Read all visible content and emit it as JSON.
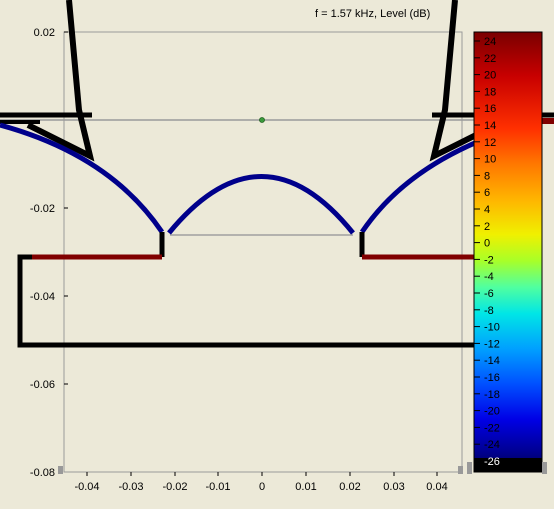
{
  "title": "f = 1.57 kHz, Level  (dB)",
  "axes": {
    "x_ticks": [
      "-0.04",
      "-0.03",
      "-0.02",
      "-0.01",
      "0",
      "0.01",
      "0.02",
      "0.03",
      "0.04"
    ],
    "y_ticks": [
      "0.02",
      "-0.02",
      "-0.04",
      "-0.06",
      "-0.08"
    ],
    "xlim": [
      -0.045,
      0.045
    ],
    "ylim": [
      -0.08,
      0.02
    ]
  },
  "colorbar": {
    "labels": [
      "24",
      "22",
      "20",
      "18",
      "16",
      "14",
      "12",
      "10",
      "8",
      "6",
      "4",
      "2",
      "0",
      "-2",
      "-4",
      "-6",
      "-8",
      "-10",
      "-12",
      "-14",
      "-16",
      "-18",
      "-20",
      "-22",
      "-24",
      "-26"
    ],
    "range_db": [
      -26,
      24
    ]
  },
  "colors": {
    "background": "#ECE9D8",
    "boundary_black": "#000000",
    "surface_red": "#800000",
    "surface_blue": "#00008B",
    "axis_line": "#9A9A9A",
    "marker_green": "#3A9A3A"
  }
}
